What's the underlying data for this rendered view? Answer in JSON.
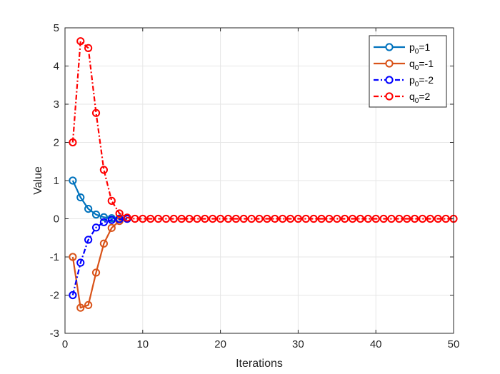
{
  "chart_data": {
    "type": "line",
    "xlabel": "Iterations",
    "ylabel": "Value",
    "xlim": [
      0,
      50
    ],
    "ylim": [
      -3,
      5
    ],
    "xticks": [
      "0",
      "10",
      "20",
      "30",
      "40",
      "50"
    ],
    "yticks": [
      "-3",
      "-2",
      "-1",
      "0",
      "1",
      "2",
      "3",
      "4",
      "5"
    ],
    "grid": true,
    "legend_position": "top-right",
    "series": [
      {
        "name": "p0=1",
        "legend_base": "p",
        "legend_sub": "0",
        "legend_suffix": "=1",
        "color": "#0072BD",
        "line_style": "solid",
        "x": [
          1,
          2,
          3,
          4,
          5,
          6,
          7,
          8
        ],
        "values": [
          1.0,
          0.56,
          0.26,
          0.11,
          0.04,
          0.015,
          0.005,
          0.0
        ]
      },
      {
        "name": "q0=-1",
        "legend_base": "q",
        "legend_sub": "0",
        "legend_suffix": "=-1",
        "color": "#D95319",
        "line_style": "solid",
        "x": [
          1,
          2,
          3,
          4,
          5,
          6,
          7,
          8
        ],
        "values": [
          -1.0,
          -2.33,
          -2.26,
          -1.41,
          -0.65,
          -0.24,
          -0.06,
          0.0
        ]
      },
      {
        "name": "p0=-2",
        "legend_base": "p",
        "legend_sub": "0",
        "legend_suffix": "=-2",
        "color": "#0000FF",
        "line_style": "dashdot",
        "x": [
          1,
          2,
          3,
          4,
          5,
          6,
          7,
          8
        ],
        "values": [
          -2.0,
          -1.15,
          -0.55,
          -0.23,
          -0.09,
          -0.03,
          -0.01,
          0.0
        ]
      },
      {
        "name": "q0=2",
        "legend_base": "q",
        "legend_sub": "0",
        "legend_suffix": "=2",
        "color": "#FF0000",
        "line_style": "dashdot",
        "x": [
          1,
          2,
          3,
          4,
          5,
          6,
          7,
          8,
          9,
          10,
          11,
          12,
          13,
          14,
          15,
          16,
          17,
          18,
          19,
          20,
          21,
          22,
          23,
          24,
          25,
          26,
          27,
          28,
          29,
          30,
          31,
          32,
          33,
          34,
          35,
          36,
          37,
          38,
          39,
          40,
          41,
          42,
          43,
          44,
          45,
          46,
          47,
          48,
          49,
          50
        ],
        "values": [
          2.0,
          4.65,
          4.47,
          2.77,
          1.28,
          0.47,
          0.14,
          0.03,
          0,
          0,
          0,
          0,
          0,
          0,
          0,
          0,
          0,
          0,
          0,
          0,
          0,
          0,
          0,
          0,
          0,
          0,
          0,
          0,
          0,
          0,
          0,
          0,
          0,
          0,
          0,
          0,
          0,
          0,
          0,
          0,
          0,
          0,
          0,
          0,
          0,
          0,
          0,
          0,
          0,
          0
        ]
      }
    ]
  }
}
